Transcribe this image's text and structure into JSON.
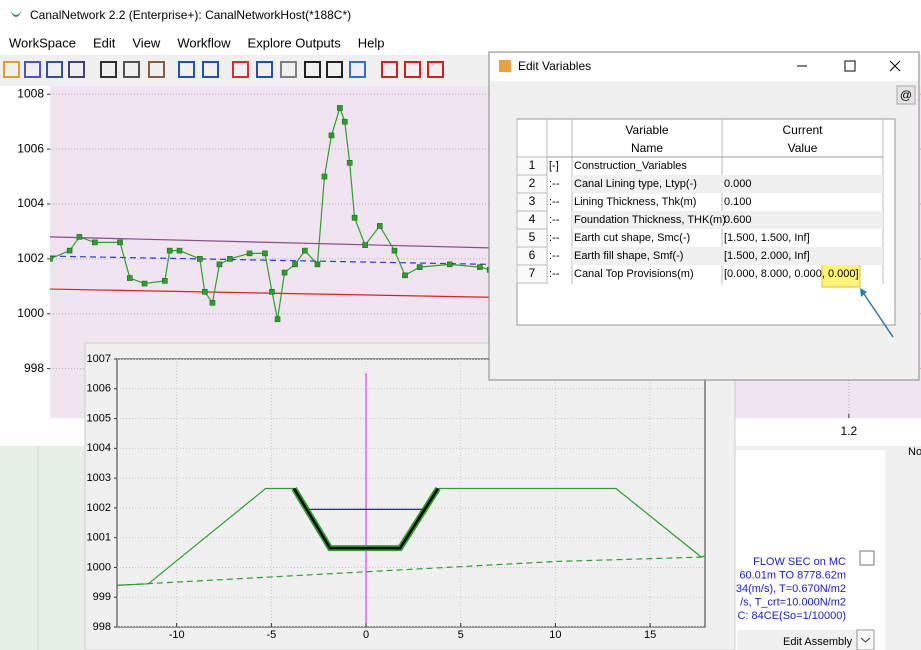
{
  "window": {
    "title": "CanalNetwork 2.2  (Enterprise+): CanalNetworkHost(*188C*)"
  },
  "menu": [
    "WorkSpace",
    "Edit",
    "View",
    "Workflow",
    "Explore Outputs",
    "Help"
  ],
  "dialog": {
    "title": "Edit Variables",
    "at_button": "@",
    "headers": [
      [
        "Variable",
        "Name"
      ],
      [
        "Current",
        "Value"
      ]
    ],
    "rows": [
      {
        "index": 1,
        "prefix": "[-]",
        "name": "Construction_Variables"
      },
      {
        "index": 2,
        "prefix": ":--",
        "name": "Canal Lining type, Ltyp(-)",
        "value": "0.000"
      },
      {
        "index": 3,
        "prefix": ":--",
        "name": "Lining Thickness, Thk(m)",
        "value": "0.100"
      },
      {
        "index": 4,
        "prefix": ":--",
        "name": "Foundation Thickness, THK(m)",
        "value": "0.600"
      },
      {
        "index": 5,
        "prefix": ":--",
        "name": "Earth cut shape, Smc(-)",
        "value": "[1.500, 1.500, Inf]"
      },
      {
        "index": 6,
        "prefix": ":--",
        "name": "Earth fill shape, Smf(-)",
        "value": "[1.500, 2.000, Inf]"
      },
      {
        "index": 7,
        "prefix": ":--",
        "name": "Canal Top Provisions(m)",
        "value": "[0.000, 8.000, 0.000, 0.000]"
      }
    ]
  },
  "info_panel": {
    "lines": [
      "FLOW SEC on MC",
      "60.01m TO 8778.62m",
      "34(m/s), T=0.670N/m2",
      "/s, T_crt=10.000N/m2",
      "C: 84CE(So=1/10000)"
    ],
    "button": "Edit Assembly",
    "label": "No"
  },
  "chart_data": [
    {
      "type": "line",
      "xlim": [
        0.059,
        1.303
      ],
      "ylim": [
        996.2,
        1008.3
      ],
      "xticks": [
        1.2
      ],
      "yticks": [
        998,
        1000,
        1002,
        1004,
        1006,
        1008
      ],
      "series": [
        {
          "color": "#8b4a8b",
          "x": [
            0.059,
            0.687
          ],
          "values": [
            1002.8,
            1002.4
          ]
        },
        {
          "color": "#e02020",
          "x": [
            0.059,
            0.687
          ],
          "values": [
            1000.9,
            1000.6
          ]
        },
        {
          "color": "#2a3bd6",
          "dash": true,
          "x": [
            0.059,
            0.687
          ],
          "values": [
            1002.1,
            1001.8
          ]
        },
        {
          "color": "#2ca02c",
          "markers": true,
          "x": [
            0.059,
            0.087,
            0.101,
            0.123,
            0.159,
            0.173,
            0.194,
            0.223,
            0.23,
            0.244,
            0.273,
            0.28,
            0.291,
            0.301,
            0.316,
            0.344,
            0.366,
            0.376,
            0.384,
            0.394,
            0.409,
            0.423,
            0.441,
            0.451,
            0.461,
            0.473,
            0.48,
            0.487,
            0.494,
            0.509,
            0.53,
            0.551,
            0.566,
            0.587,
            0.63,
            0.673,
            0.687
          ],
          "values": [
            1002,
            1002.3,
            1002.8,
            1002.6,
            1002.6,
            1001.3,
            1001.1,
            1001.2,
            1002.3,
            1002.3,
            1002,
            1000.8,
            1000.4,
            1001.8,
            1002,
            1002.2,
            1002.2,
            1000.8,
            999.8,
            1001.5,
            1001.8,
            1002.3,
            1001.8,
            1005,
            1006.5,
            1007.5,
            1007,
            1005.5,
            1003.5,
            1002.5,
            1003.2,
            1002.3,
            1001.4,
            1001.7,
            1001.8,
            1001.7,
            1001.6
          ]
        }
      ]
    },
    {
      "type": "line",
      "xlim": [
        -13.15,
        17.9
      ],
      "ylim": [
        998,
        1007
      ],
      "xticks": [
        -10,
        -5,
        0,
        5,
        10,
        15
      ],
      "yticks": [
        998,
        999,
        1000,
        1001,
        1002,
        1003,
        1004,
        1005,
        1006,
        1007
      ],
      "grid": true,
      "vline": 0,
      "vline_color": "#e020e0",
      "series": [
        {
          "color": "#2ca02c",
          "x": [
            -13.15,
            -11.5,
            -5.3,
            -3.8
          ],
          "values": [
            999.4,
            999.45,
            1002.65,
            1002.65
          ]
        },
        {
          "color": "#2ca02c",
          "x": [
            3.8,
            13.2,
            17.7,
            17.9
          ],
          "values": [
            1002.65,
            1002.65,
            1000.35,
            1000.4
          ]
        },
        {
          "color": "#2ca02c",
          "dash": true,
          "x": [
            -13.15,
            10,
            17.9
          ],
          "values": [
            999.4,
            1000.2,
            1000.35
          ]
        },
        {
          "color": "#000000",
          "outline": "#2ca02c",
          "x": [
            -3.8,
            -1.9,
            1.8,
            3.8
          ],
          "values": [
            1002.65,
            1000.65,
            1000.65,
            1002.65
          ]
        },
        {
          "color": "#2222cc",
          "x": [
            -3,
            3
          ],
          "values": [
            1001.95,
            1001.95
          ]
        }
      ]
    }
  ]
}
